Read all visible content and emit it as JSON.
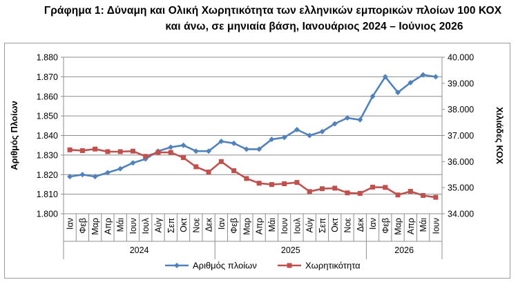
{
  "title": {
    "line1": "Γράφημα 1: Δύναμη και Ολική Χωρητικότητα των ελληνικών εμπορικών πλοίων 100 ΚΟΧ",
    "line2": "και άνω, σε μηνιαία βάση, Ιανουάριος 2024 – Ιούνιος 2026"
  },
  "chart_data": {
    "type": "line",
    "categories": [
      "Ιαν",
      "Φεβ",
      "Μαρ",
      "Απρ",
      "Μάι",
      "Ιουν",
      "Ιουλ",
      "Αύγ",
      "Σεπ",
      "Οκτ",
      "Νοε",
      "Δεκ",
      "Ιαν",
      "Φεβ",
      "Μαρ",
      "Απρ",
      "Μάι",
      "Ιουν",
      "Ιουλ",
      "Αύγ",
      "Σεπ",
      "Οκτ",
      "Νοε",
      "Δεκ",
      "Ιαν",
      "Φεβ",
      "Μαρ",
      "Απρ",
      "Μάι",
      "Ιουν"
    ],
    "year_groups": [
      {
        "label": "2024",
        "months": 12
      },
      {
        "label": "2025",
        "months": 12
      },
      {
        "label": "2026",
        "months": 6
      }
    ],
    "ylabel": "Αριθμός Πλοίων",
    "y2label": "Χιλιάδες ΚΟΧ",
    "ylim": [
      1800,
      1880
    ],
    "y_ticks": [
      "1.800",
      "1.810",
      "1.820",
      "1.830",
      "1.840",
      "1.850",
      "1.860",
      "1.870",
      "1.880"
    ],
    "y2lim": [
      34000,
      40000
    ],
    "y2_ticks": [
      "34.000",
      "35.000",
      "36.000",
      "37.000",
      "38.000",
      "39.000",
      "40.000"
    ],
    "legend_position": "bottom",
    "series": [
      {
        "name": "Αριθμός πλοίων",
        "axis": "left",
        "color": "#4f81bd",
        "marker": "diamond",
        "values": [
          1819,
          1820,
          1819,
          1821,
          1823,
          1826,
          1828,
          1832,
          1834,
          1835,
          1832,
          1832,
          1837,
          1836,
          1833,
          1833,
          1838,
          1839,
          1843,
          1840,
          1842,
          1846,
          1849,
          1848,
          1860,
          1870,
          1862,
          1867,
          1871,
          1870
        ]
      },
      {
        "name": "Χωρητικότητα",
        "axis": "right",
        "color": "#c0504d",
        "marker": "square",
        "values": [
          36450,
          36420,
          36480,
          36380,
          36380,
          36400,
          36200,
          36350,
          36350,
          36150,
          35800,
          35600,
          36000,
          35650,
          35350,
          35170,
          35120,
          35150,
          35200,
          34850,
          34960,
          34980,
          34800,
          34780,
          35020,
          35010,
          34720,
          34860,
          34700,
          34630
        ]
      }
    ]
  }
}
